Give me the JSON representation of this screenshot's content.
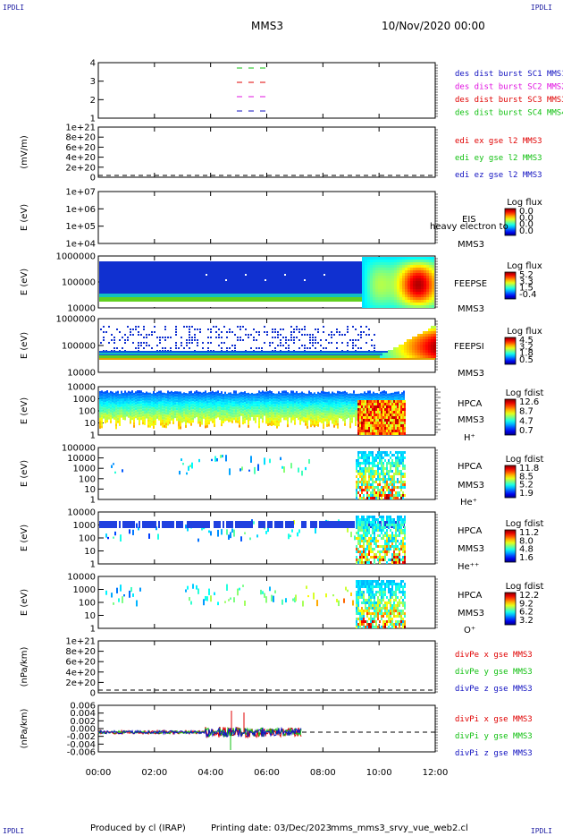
{
  "corners": {
    "tl": "IPDLI",
    "tr": "IPDLI",
    "bl": "IPDLI",
    "br": "IPDLI"
  },
  "header": {
    "spacecraft": "MMS3",
    "date": "10/Nov/2020 00:00"
  },
  "footer": {
    "producer": "Produced by cl (IRAP)",
    "printing_date": "Printing date: 03/Dec/2023",
    "filename": "mms_mms3_srvy_vue_web2.cl"
  },
  "colors": {
    "mms1": "#1010c0",
    "mms2": "#e010e0",
    "mms3": "#e00000",
    "mms4": "#10c010",
    "x": "#e00000",
    "y": "#10c010",
    "z": "#1010c0"
  },
  "chart_data": [
    {
      "id": "p1",
      "type": "line",
      "ylabel": "",
      "yticks": [
        "4",
        "3",
        "2",
        "1"
      ],
      "legend": [
        "des dist burst SC1 MMS1",
        "des dist burst SC2 MMS2",
        "des dist burst SC3 MMS3",
        "des dist burst SC4 MMS4"
      ]
    },
    {
      "id": "p2",
      "type": "line",
      "ylabel": "(mV/m)",
      "yticks": [
        "1e+21",
        "8e+20",
        "6e+20",
        "4e+20",
        "2e+20",
        "0"
      ],
      "legend": [
        "edi ex gse l2 MMS3",
        "edi ey gse l2 MMS3",
        "edi ez gse l2 MMS3"
      ]
    },
    {
      "id": "p3",
      "type": "heatmap",
      "ylabel": "E (eV)",
      "yticks": [
        "1e+07",
        "1e+06",
        "1e+05",
        "1e+04"
      ],
      "right": [
        "EIS",
        "MMS3"
      ],
      "overlay": "heavy electron to",
      "cb_title": "Log flux",
      "cb_ticks": [
        "0.0",
        "0.0",
        "0.0",
        "0.0"
      ]
    },
    {
      "id": "p4",
      "type": "heatmap",
      "ylabel": "E (eV)",
      "yticks": [
        "1000000",
        "100000",
        "10000"
      ],
      "right": [
        "FEEPSE",
        "MMS3"
      ],
      "cb_title": "Log flux",
      "cb_ticks": [
        "5.2",
        "3.3",
        "1.5",
        "-0.4"
      ]
    },
    {
      "id": "p5",
      "type": "heatmap",
      "ylabel": "E (eV)",
      "yticks": [
        "1000000",
        "100000",
        "10000"
      ],
      "right": [
        "FEEPSI",
        "MMS3"
      ],
      "cb_title": "Log flux",
      "cb_ticks": [
        "4.5",
        "3.2",
        "1.8",
        "0.5"
      ]
    },
    {
      "id": "p6",
      "type": "heatmap",
      "ylabel": "E (eV)",
      "yticks": [
        "10000",
        "1000",
        "100",
        "10",
        "1"
      ],
      "right": [
        "HPCA",
        "MMS3",
        "H⁺"
      ],
      "cb_title": "Log fdist",
      "cb_ticks": [
        "12.6",
        "8.7",
        "4.7",
        "0.7"
      ]
    },
    {
      "id": "p7",
      "type": "heatmap",
      "ylabel": "E (eV)",
      "yticks": [
        "100000",
        "10000",
        "1000",
        "100",
        "10",
        "1"
      ],
      "right": [
        "HPCA",
        "MMS3",
        "He⁺"
      ],
      "cb_title": "Log fdist",
      "cb_ticks": [
        "11.8",
        "8.5",
        "5.2",
        "1.9"
      ]
    },
    {
      "id": "p8",
      "type": "heatmap",
      "ylabel": "E (eV)",
      "yticks": [
        "10000",
        "1000",
        "100",
        "10",
        "1"
      ],
      "right": [
        "HPCA",
        "MMS3",
        "He⁺⁺"
      ],
      "cb_title": "Log fdist",
      "cb_ticks": [
        "11.2",
        "8.0",
        "4.8",
        "1.6"
      ]
    },
    {
      "id": "p9",
      "type": "heatmap",
      "ylabel": "E (eV)",
      "yticks": [
        "10000",
        "1000",
        "100",
        "10",
        "1"
      ],
      "right": [
        "HPCA",
        "MMS3",
        "O⁺"
      ],
      "cb_title": "Log fdist",
      "cb_ticks": [
        "12.2",
        "9.2",
        "6.2",
        "3.2"
      ]
    },
    {
      "id": "p10",
      "type": "line",
      "ylabel": "(nPa/km)",
      "yticks": [
        "1e+21",
        "8e+20",
        "6e+20",
        "4e+20",
        "2e+20",
        "0"
      ],
      "legend": [
        "divPe x gse MMS3",
        "divPe y gse MMS3",
        "divPe z gse MMS3"
      ]
    },
    {
      "id": "p11",
      "type": "line",
      "ylabel": "(nPa/km)",
      "yticks": [
        "0.006",
        "0.004",
        "0.002",
        "0.000",
        "-0.002",
        "-0.004",
        "-0.006"
      ],
      "legend": [
        "divPi x gse MMS3",
        "divPi y gse MMS3",
        "divPi z gse MMS3"
      ]
    }
  ],
  "xaxis": {
    "ticks": [
      "00:00",
      "02:00",
      "04:00",
      "06:00",
      "08:00",
      "10:00",
      "12:00"
    ],
    "range_hours": [
      0,
      12
    ]
  }
}
